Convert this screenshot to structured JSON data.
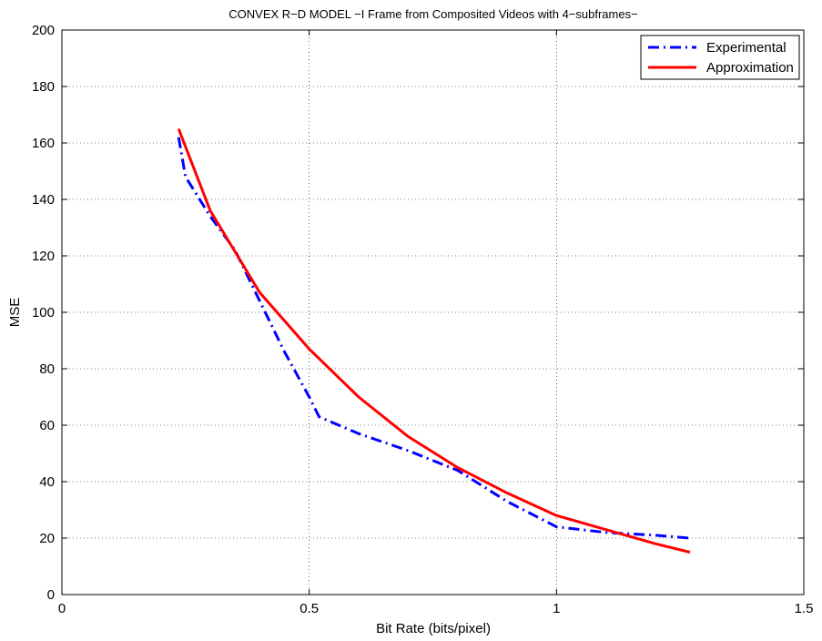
{
  "chart_data": {
    "type": "line",
    "title": "CONVEX R−D MODEL −I Frame from Composited Videos with 4−subframes−",
    "xlabel": "Bit Rate (bits/pixel)",
    "ylabel": "MSE",
    "xlim": [
      0,
      1.5
    ],
    "ylim": [
      0,
      200
    ],
    "xticks": [
      "0",
      "0.5",
      "1",
      "1.5"
    ],
    "yticks": [
      "0",
      "20",
      "40",
      "60",
      "80",
      "100",
      "120",
      "140",
      "160",
      "180",
      "200"
    ],
    "grid": true,
    "legend_position": "top-right",
    "series": [
      {
        "name": "Experimental",
        "color": "#0000ff",
        "style": "dash-dot",
        "x": [
          0.236,
          0.25,
          0.3,
          0.35,
          0.4,
          0.45,
          0.5,
          0.52,
          0.6,
          0.7,
          0.8,
          0.9,
          1.0,
          1.1,
          1.2,
          1.27
        ],
        "y": [
          162,
          148,
          134,
          122,
          104,
          86,
          70,
          63,
          57,
          51,
          44,
          33,
          24,
          22,
          21,
          20
        ]
      },
      {
        "name": "Approximation",
        "color": "#ff0000",
        "style": "solid",
        "x": [
          0.236,
          0.3,
          0.4,
          0.5,
          0.6,
          0.7,
          0.8,
          0.9,
          1.0,
          1.1,
          1.2,
          1.27
        ],
        "y": [
          165,
          136,
          107,
          87,
          70,
          56,
          45,
          36,
          28,
          23,
          18,
          15
        ]
      }
    ]
  }
}
